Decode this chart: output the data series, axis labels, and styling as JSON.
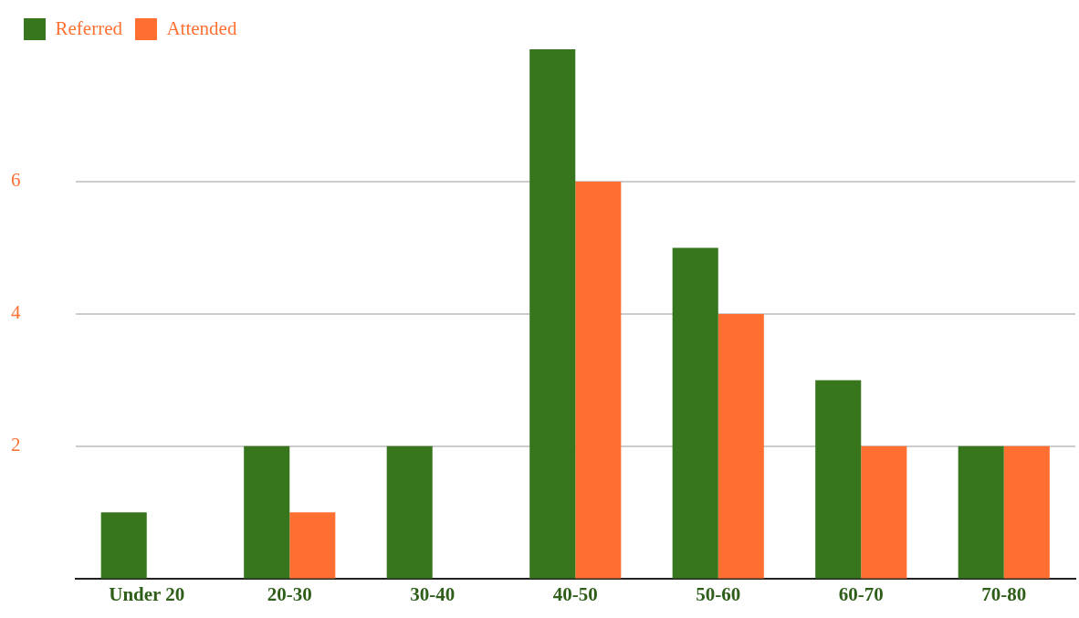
{
  "chart_data": {
    "type": "bar",
    "categories": [
      "Under 20",
      "20-30",
      "30-40",
      "40-50",
      "50-60",
      "60-70",
      "70-80"
    ],
    "series": [
      {
        "name": "Referred",
        "color": "#38761d",
        "values": [
          1,
          2,
          2,
          8,
          5,
          3,
          2
        ]
      },
      {
        "name": "Attended",
        "color": "#ff6f31",
        "values": [
          0,
          1,
          0,
          6,
          4,
          2,
          2
        ]
      }
    ],
    "ylim": [
      0,
      8
    ],
    "yticks": [
      2,
      4,
      6
    ],
    "grid": "y",
    "legend": "top left"
  }
}
